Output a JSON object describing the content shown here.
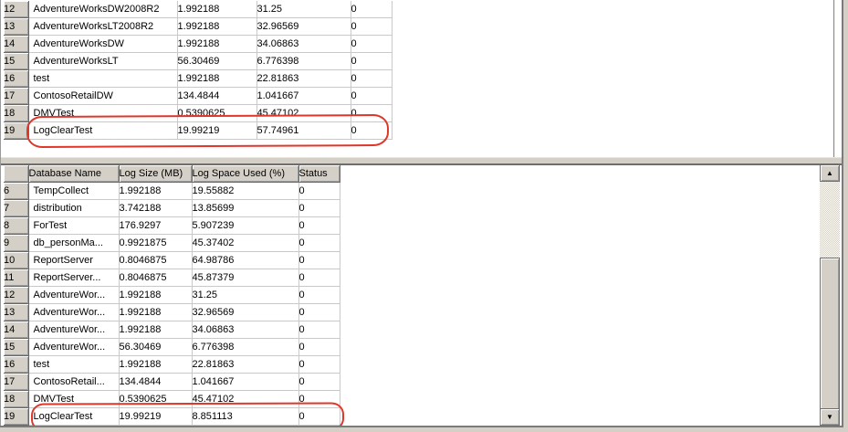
{
  "colors": {
    "annotation_red": "#e0372b",
    "chrome_gray": "#d4d0c8",
    "gridline_gray": "#c9c9c9"
  },
  "icons": {
    "scroll_up": "▲",
    "scroll_down": "▼"
  },
  "top_grid": {
    "highlight_row": "19",
    "rows": [
      {
        "num": "12",
        "name": "AdventureWorksDW2008R2",
        "log_size": "1.992188",
        "log_space_used": "31.25",
        "status": "0"
      },
      {
        "num": "13",
        "name": "AdventureWorksLT2008R2",
        "log_size": "1.992188",
        "log_space_used": "32.96569",
        "status": "0"
      },
      {
        "num": "14",
        "name": "AdventureWorksDW",
        "log_size": "1.992188",
        "log_space_used": "34.06863",
        "status": "0"
      },
      {
        "num": "15",
        "name": "AdventureWorksLT",
        "log_size": "56.30469",
        "log_space_used": "6.776398",
        "status": "0"
      },
      {
        "num": "16",
        "name": "test",
        "log_size": "1.992188",
        "log_space_used": "22.81863",
        "status": "0"
      },
      {
        "num": "17",
        "name": "ContosoRetailDW",
        "log_size": "134.4844",
        "log_space_used": "1.041667",
        "status": "0"
      },
      {
        "num": "18",
        "name": "DMVTest",
        "log_size": "0.5390625",
        "log_space_used": "45.47102",
        "status": "0"
      },
      {
        "num": "19",
        "name": "LogClearTest",
        "log_size": "19.99219",
        "log_space_used": "57.74961",
        "status": "0"
      }
    ]
  },
  "bottom_grid": {
    "columns": [
      "Database Name",
      "Log Size (MB)",
      "Log Space Used (%)",
      "Status"
    ],
    "highlight_row": "19",
    "rows": [
      {
        "num": "6",
        "name": "TempCollect",
        "log_size": "1.992188",
        "log_space_used": "19.55882",
        "status": "0"
      },
      {
        "num": "7",
        "name": "distribution",
        "log_size": "3.742188",
        "log_space_used": "13.85699",
        "status": "0"
      },
      {
        "num": "8",
        "name": "ForTest",
        "log_size": "176.9297",
        "log_space_used": "5.907239",
        "status": "0"
      },
      {
        "num": "9",
        "name": "db_personMa...",
        "log_size": "0.9921875",
        "log_space_used": "45.37402",
        "status": "0"
      },
      {
        "num": "10",
        "name": "ReportServer",
        "log_size": "0.8046875",
        "log_space_used": "64.98786",
        "status": "0"
      },
      {
        "num": "11",
        "name": "ReportServer...",
        "log_size": "0.8046875",
        "log_space_used": "45.87379",
        "status": "0"
      },
      {
        "num": "12",
        "name": "AdventureWor...",
        "log_size": "1.992188",
        "log_space_used": "31.25",
        "status": "0"
      },
      {
        "num": "13",
        "name": "AdventureWor...",
        "log_size": "1.992188",
        "log_space_used": "32.96569",
        "status": "0"
      },
      {
        "num": "14",
        "name": "AdventureWor...",
        "log_size": "1.992188",
        "log_space_used": "34.06863",
        "status": "0"
      },
      {
        "num": "15",
        "name": "AdventureWor...",
        "log_size": "56.30469",
        "log_space_used": "6.776398",
        "status": "0"
      },
      {
        "num": "16",
        "name": "test",
        "log_size": "1.992188",
        "log_space_used": "22.81863",
        "status": "0"
      },
      {
        "num": "17",
        "name": "ContosoRetail...",
        "log_size": "134.4844",
        "log_space_used": "1.041667",
        "status": "0"
      },
      {
        "num": "18",
        "name": "DMVTest",
        "log_size": "0.5390625",
        "log_space_used": "45.47102",
        "status": "0"
      },
      {
        "num": "19",
        "name": "LogClearTest",
        "log_size": "19.99219",
        "log_space_used": "8.851113",
        "status": "0"
      }
    ]
  }
}
